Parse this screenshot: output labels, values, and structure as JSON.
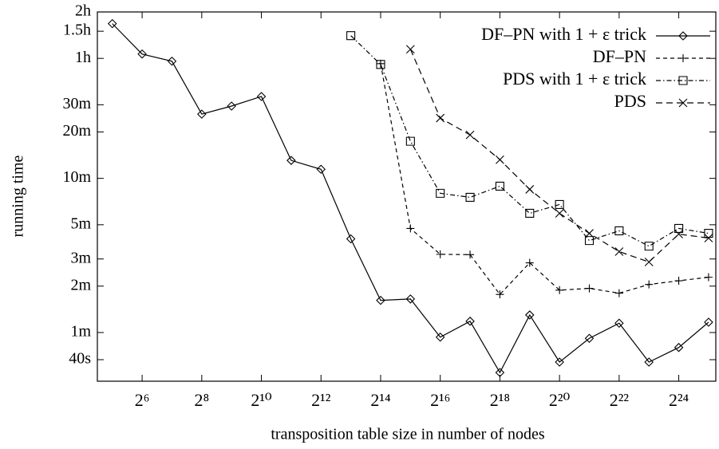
{
  "chart_data": {
    "type": "line",
    "xlabel": "transposition table size in number of nodes",
    "ylabel": "running time",
    "xscale": "log2",
    "yscale": "log",
    "xlim": [
      22.6,
      39700000
    ],
    "ylim": [
      29,
      7200
    ],
    "xticks": [
      {
        "value": 64,
        "label": "2⁶"
      },
      {
        "value": 256,
        "label": "2⁸"
      },
      {
        "value": 1024,
        "label": "2¹⁰"
      },
      {
        "value": 4096,
        "label": "2¹²"
      },
      {
        "value": 16384,
        "label": "2¹⁴"
      },
      {
        "value": 65536,
        "label": "2¹⁶"
      },
      {
        "value": 262144,
        "label": "2¹⁸"
      },
      {
        "value": 1048576,
        "label": "2²⁰"
      },
      {
        "value": 4194304,
        "label": "2²²"
      },
      {
        "value": 16777216,
        "label": "2²⁴"
      }
    ],
    "yticks": [
      {
        "value": 40,
        "label": "40s"
      },
      {
        "value": 60,
        "label": "1m"
      },
      {
        "value": 120,
        "label": "2m"
      },
      {
        "value": 180,
        "label": "3m"
      },
      {
        "value": 300,
        "label": "5m"
      },
      {
        "value": 600,
        "label": "10m"
      },
      {
        "value": 1200,
        "label": "20m"
      },
      {
        "value": 1800,
        "label": "30m"
      },
      {
        "value": 3600,
        "label": "1h"
      },
      {
        "value": 5400,
        "label": "1.5h"
      },
      {
        "value": 7200,
        "label": "2h"
      }
    ],
    "legend": "upper right",
    "series": [
      {
        "name": "DF–PN with 1 + ε trick",
        "color": "#000000",
        "marker": "diamond",
        "dash": "solid",
        "x": [
          32,
          64,
          128,
          256,
          512,
          1024,
          2048,
          4096,
          8192,
          16384,
          32768,
          65536,
          131072,
          262144,
          524288,
          1048576,
          2097152,
          4194304,
          8388608,
          16777216,
          33554432
        ],
        "values": [
          6048,
          3840,
          3450,
          1566,
          1766,
          2038,
          784,
          687,
          243,
          97,
          99,
          56,
          71,
          33,
          78,
          38.6,
          55,
          69,
          38.6,
          48,
          70
        ]
      },
      {
        "name": "DF–PN",
        "color": "#000000",
        "marker": "plus",
        "dash": "dashed",
        "x": [
          16384,
          32768,
          65536,
          131072,
          262144,
          524288,
          1048576,
          2097152,
          4194304,
          8388608,
          16777216,
          33554432
        ],
        "values": [
          3326,
          284,
          193,
          192,
          106,
          170,
          113,
          116,
          108,
          123,
          130,
          137
        ]
      },
      {
        "name": "PDS with 1 + ε trick",
        "color": "#000000",
        "marker": "square",
        "dash": "dashdot",
        "x": [
          8192,
          16384,
          32768,
          65536,
          131072,
          262144,
          524288,
          1048576,
          2097152,
          4194304,
          8388608,
          16777216,
          33554432
        ],
        "values": [
          5057,
          3287,
          1044,
          480,
          452,
          534,
          356,
          406,
          237,
          274,
          218,
          284,
          264
        ]
      },
      {
        "name": "PDS",
        "color": "#000000",
        "marker": "cross",
        "dash": "dashed2",
        "x": [
          32768,
          65536,
          131072,
          262144,
          524288,
          1048576,
          2097152,
          4194304,
          8388608,
          16777216,
          33554432
        ],
        "values": [
          4126,
          1476,
          1148,
          793,
          509,
          356,
          264,
          201,
          172,
          261,
          246
        ]
      }
    ]
  }
}
